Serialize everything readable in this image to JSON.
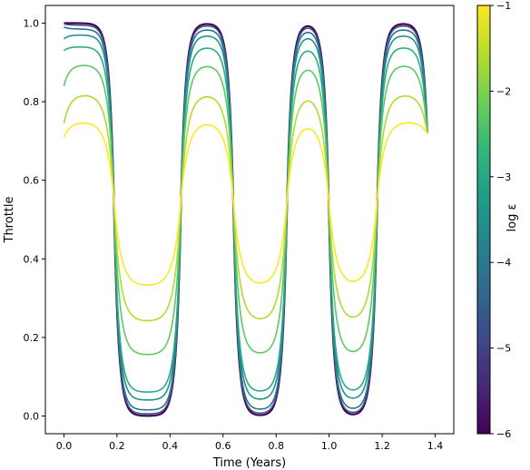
{
  "chart_data": {
    "type": "line",
    "title": "",
    "xlabel": "Time (Years)",
    "ylabel": "Throttle",
    "xlim": [
      -0.07,
      1.47
    ],
    "ylim": [
      -0.045,
      1.045
    ],
    "xticks": [
      "0.0",
      "0.2",
      "0.4",
      "0.6",
      "0.8",
      "1.0",
      "1.2",
      "1.4"
    ],
    "yticks": [
      "0.0",
      "0.2",
      "0.4",
      "0.6",
      "0.8",
      "1.0"
    ],
    "switch_times": [
      0.19,
      0.44,
      0.64,
      0.84,
      1.0,
      1.18
    ],
    "x_end": 1.37,
    "y_end": 0.72,
    "colorbar": {
      "label": "log ε",
      "range": [
        -6,
        -1
      ],
      "ticks": [
        "−6",
        "−5",
        "−4",
        "−3",
        "−2",
        "−1"
      ],
      "colormap": "viridis"
    },
    "series": [
      {
        "log_eps": -6.0,
        "color": "#440154",
        "y_start": 1.0,
        "y_high": 1.0,
        "y_low": 0.0
      },
      {
        "log_eps": -5.0,
        "color": "#3b528b",
        "y_start": 0.998,
        "y_high": 0.995,
        "y_low": 0.005
      },
      {
        "log_eps": -4.0,
        "color": "#2c728e",
        "y_start": 0.99,
        "y_high": 0.985,
        "y_low": 0.015
      },
      {
        "log_eps": -3.5,
        "color": "#21918c",
        "y_start": 0.96,
        "y_high": 0.97,
        "y_low": 0.04
      },
      {
        "log_eps": -3.0,
        "color": "#28ae80",
        "y_start": 0.93,
        "y_high": 0.94,
        "y_low": 0.06
      },
      {
        "log_eps": -2.5,
        "color": "#5ec962",
        "y_start": 0.84,
        "y_high": 0.895,
        "y_low": 0.155
      },
      {
        "log_eps": -2.0,
        "color": "#addc30",
        "y_start": 0.745,
        "y_high": 0.82,
        "y_low": 0.24
      },
      {
        "log_eps": -1.0,
        "color": "#fde725",
        "y_start": 0.71,
        "y_high": 0.75,
        "y_low": 0.33
      }
    ]
  }
}
